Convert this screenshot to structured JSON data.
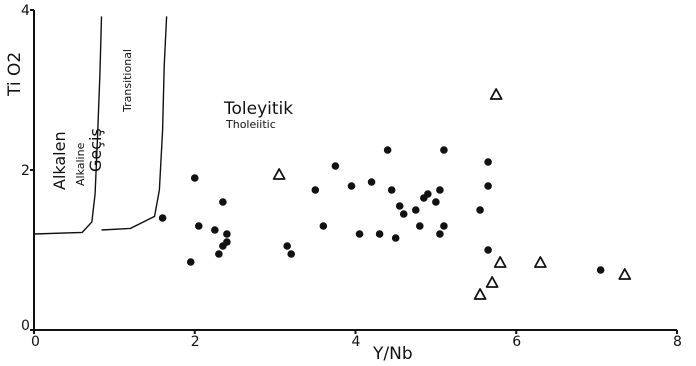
{
  "chart_data": {
    "type": "scatter",
    "title": "",
    "xlabel": "Y/Nb",
    "ylabel": "Ti O2",
    "xlim": [
      0,
      8
    ],
    "ylim": [
      0,
      4
    ],
    "x_ticks": [
      "0",
      "2",
      "4",
      "6",
      "8"
    ],
    "y_ticks": [
      "0",
      "2",
      "4"
    ],
    "regions": {
      "alkaline_tr": "Alkalen",
      "alkaline_en": "Alkaline",
      "transitional_tr": "Geçiş",
      "transitional_en": "Transitional",
      "tholeiitic_tr": "Toleyitik",
      "tholeiitic_en": "Tholeiitic"
    },
    "series": [
      {
        "marker": "filled-circle",
        "points": [
          [
            1.6,
            1.4
          ],
          [
            1.95,
            0.85
          ],
          [
            2.0,
            1.9
          ],
          [
            2.05,
            1.3
          ],
          [
            2.25,
            1.25
          ],
          [
            2.3,
            0.95
          ],
          [
            2.35,
            1.05
          ],
          [
            2.35,
            1.6
          ],
          [
            2.4,
            1.2
          ],
          [
            2.4,
            1.1
          ],
          [
            3.15,
            1.05
          ],
          [
            3.2,
            0.95
          ],
          [
            3.5,
            1.75
          ],
          [
            3.6,
            1.3
          ],
          [
            3.75,
            2.05
          ],
          [
            3.95,
            1.8
          ],
          [
            4.05,
            1.2
          ],
          [
            4.2,
            1.85
          ],
          [
            4.3,
            1.2
          ],
          [
            4.4,
            2.25
          ],
          [
            4.45,
            1.75
          ],
          [
            4.5,
            1.15
          ],
          [
            4.55,
            1.55
          ],
          [
            4.6,
            1.45
          ],
          [
            4.75,
            1.5
          ],
          [
            4.8,
            1.3
          ],
          [
            4.85,
            1.65
          ],
          [
            4.9,
            1.7
          ],
          [
            5.0,
            1.6
          ],
          [
            5.05,
            1.75
          ],
          [
            5.05,
            1.2
          ],
          [
            5.1,
            1.3
          ],
          [
            5.1,
            2.25
          ],
          [
            5.55,
            1.5
          ],
          [
            5.65,
            1.0
          ],
          [
            5.65,
            1.8
          ],
          [
            5.65,
            2.1
          ],
          [
            7.05,
            0.75
          ]
        ]
      },
      {
        "marker": "open-triangle",
        "points": [
          [
            3.05,
            1.95
          ],
          [
            5.55,
            0.45
          ],
          [
            5.7,
            0.6
          ],
          [
            5.75,
            2.95
          ],
          [
            5.8,
            0.85
          ],
          [
            6.3,
            0.85
          ],
          [
            7.35,
            0.7
          ]
        ]
      }
    ],
    "boundary_lines": [
      {
        "between": "Alkalen / Geçiş",
        "points": [
          [
            0,
            1.2
          ],
          [
            0.6,
            1.22
          ],
          [
            0.72,
            1.35
          ],
          [
            0.76,
            1.7
          ],
          [
            0.79,
            2.4
          ],
          [
            0.82,
            3.2
          ],
          [
            0.84,
            3.92
          ]
        ]
      },
      {
        "between": "Geçiş / Toleyitik",
        "points": [
          [
            0.84,
            1.25
          ],
          [
            1.2,
            1.27
          ],
          [
            1.5,
            1.42
          ],
          [
            1.56,
            1.75
          ],
          [
            1.6,
            2.5
          ],
          [
            1.62,
            3.3
          ],
          [
            1.65,
            3.92
          ]
        ]
      }
    ]
  }
}
